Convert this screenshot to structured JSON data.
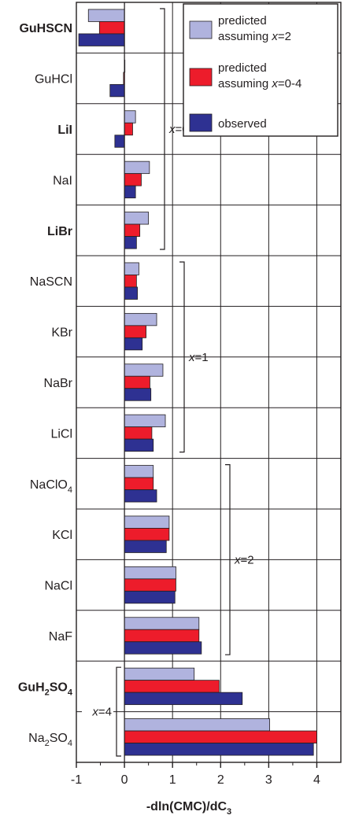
{
  "chart_data": {
    "type": "bar",
    "orientation": "horizontal",
    "xlabel": "-dln(CMC)/dC",
    "xlabel_sub": "3",
    "xlim": [
      -1,
      4.5
    ],
    "xticks": [
      "-1",
      "0",
      "1",
      "2",
      "3",
      "4"
    ],
    "categories": [
      {
        "label": "GuHSCN",
        "sub": "",
        "after": "",
        "bold": true
      },
      {
        "label": "GuHCl",
        "sub": "",
        "after": "",
        "bold": false
      },
      {
        "label": "LiI",
        "sub": "",
        "after": "",
        "bold": true
      },
      {
        "label": "NaI",
        "sub": "",
        "after": "",
        "bold": false
      },
      {
        "label": "LiBr",
        "sub": "",
        "after": "",
        "bold": true
      },
      {
        "label": "NaSCN",
        "sub": "",
        "after": "",
        "bold": false
      },
      {
        "label": "KBr",
        "sub": "",
        "after": "",
        "bold": false
      },
      {
        "label": "NaBr",
        "sub": "",
        "after": "",
        "bold": false
      },
      {
        "label": "LiCl",
        "sub": "",
        "after": "",
        "bold": false
      },
      {
        "label": "NaClO",
        "sub": "4",
        "after": "",
        "bold": false
      },
      {
        "label": "KCl",
        "sub": "",
        "after": "",
        "bold": false
      },
      {
        "label": "NaCl",
        "sub": "",
        "after": "",
        "bold": false
      },
      {
        "label": "NaF",
        "sub": "",
        "after": "",
        "bold": false
      },
      {
        "label": "GuH",
        "sub": "2",
        "after": "SO",
        "sub2": "4",
        "bold": true
      },
      {
        "label": "Na",
        "sub": "2",
        "after": "SO",
        "sub2": "4",
        "bold": false
      }
    ],
    "series": [
      {
        "name_lines": [
          "predicted",
          "assuming x=2"
        ],
        "color": "#b0b3de",
        "values": [
          -0.75,
          0.0,
          0.23,
          0.52,
          0.5,
          0.3,
          0.67,
          0.8,
          0.85,
          0.6,
          0.93,
          1.07,
          1.55,
          1.45,
          3.02
        ]
      },
      {
        "name_lines": [
          "predicted",
          "assuming x=0-4"
        ],
        "color": "#ed1c2b",
        "values": [
          -0.52,
          -0.02,
          0.17,
          0.35,
          0.32,
          0.25,
          0.45,
          0.53,
          0.57,
          0.6,
          0.93,
          1.07,
          1.55,
          1.97,
          4.0
        ]
      },
      {
        "name_lines": [
          "observed"
        ],
        "color": "#2e3192",
        "values": [
          -0.95,
          -0.3,
          -0.2,
          0.23,
          0.25,
          0.27,
          0.37,
          0.55,
          0.6,
          0.67,
          0.87,
          1.05,
          1.6,
          2.45,
          3.93
        ]
      }
    ],
    "groups": [
      {
        "label": "x=0",
        "start": 0,
        "end": 4,
        "side": "right"
      },
      {
        "label": "x=1",
        "start": 5,
        "end": 8,
        "side": "right"
      },
      {
        "label": "x=2",
        "start": 9,
        "end": 12,
        "side": "right"
      },
      {
        "label": "x=4",
        "start": 13,
        "end": 14,
        "side": "left"
      }
    ],
    "legend_position": "top-right",
    "grid": true
  }
}
